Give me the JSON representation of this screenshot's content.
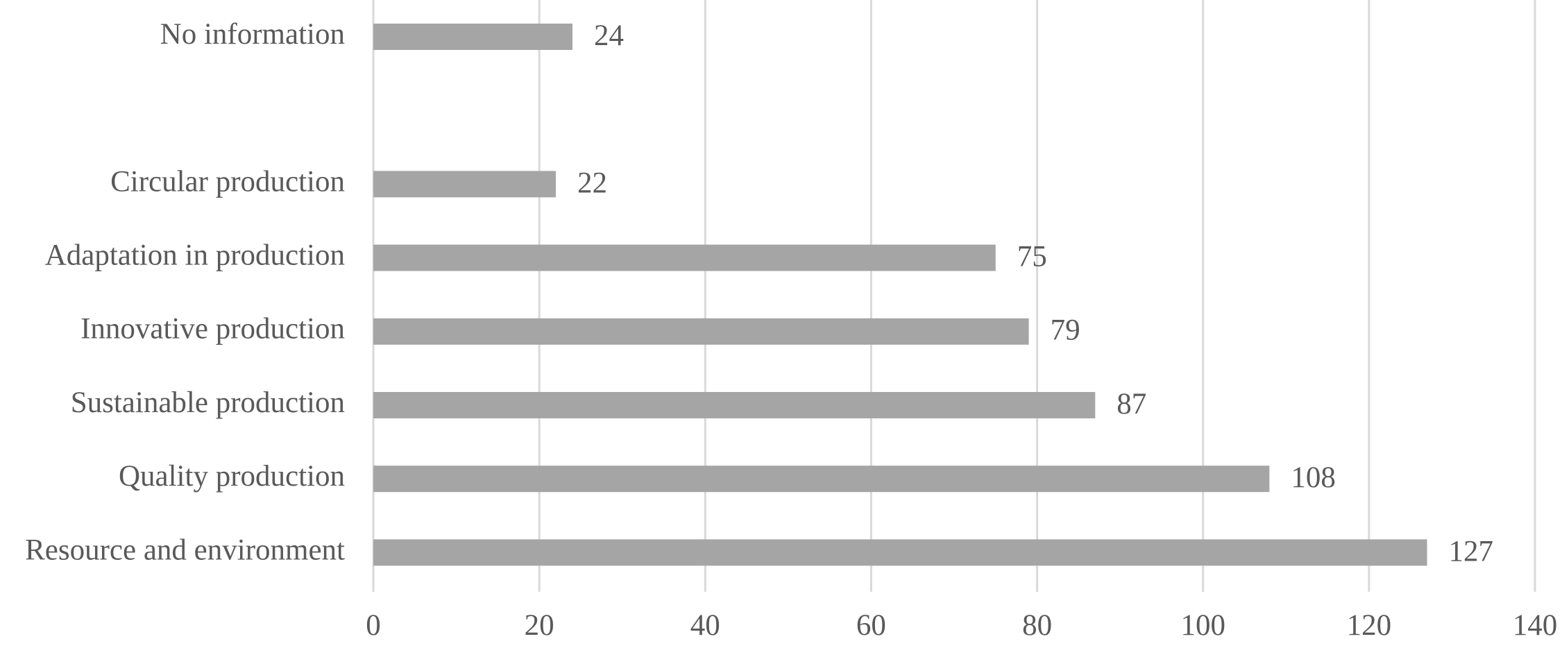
{
  "chart_data": {
    "type": "bar",
    "orientation": "horizontal",
    "categories": [
      "No information",
      null,
      "Circular production",
      "Adaptation in production",
      "Innovative production",
      "Sustainable production",
      "Quality production",
      "Resource and environment"
    ],
    "values": [
      24,
      null,
      22,
      75,
      79,
      87,
      108,
      127
    ],
    "color": "#a5a5a5",
    "xlim": [
      0,
      140
    ],
    "xticks": [
      0,
      20,
      40,
      60,
      80,
      100,
      120,
      140
    ],
    "grid": true
  }
}
